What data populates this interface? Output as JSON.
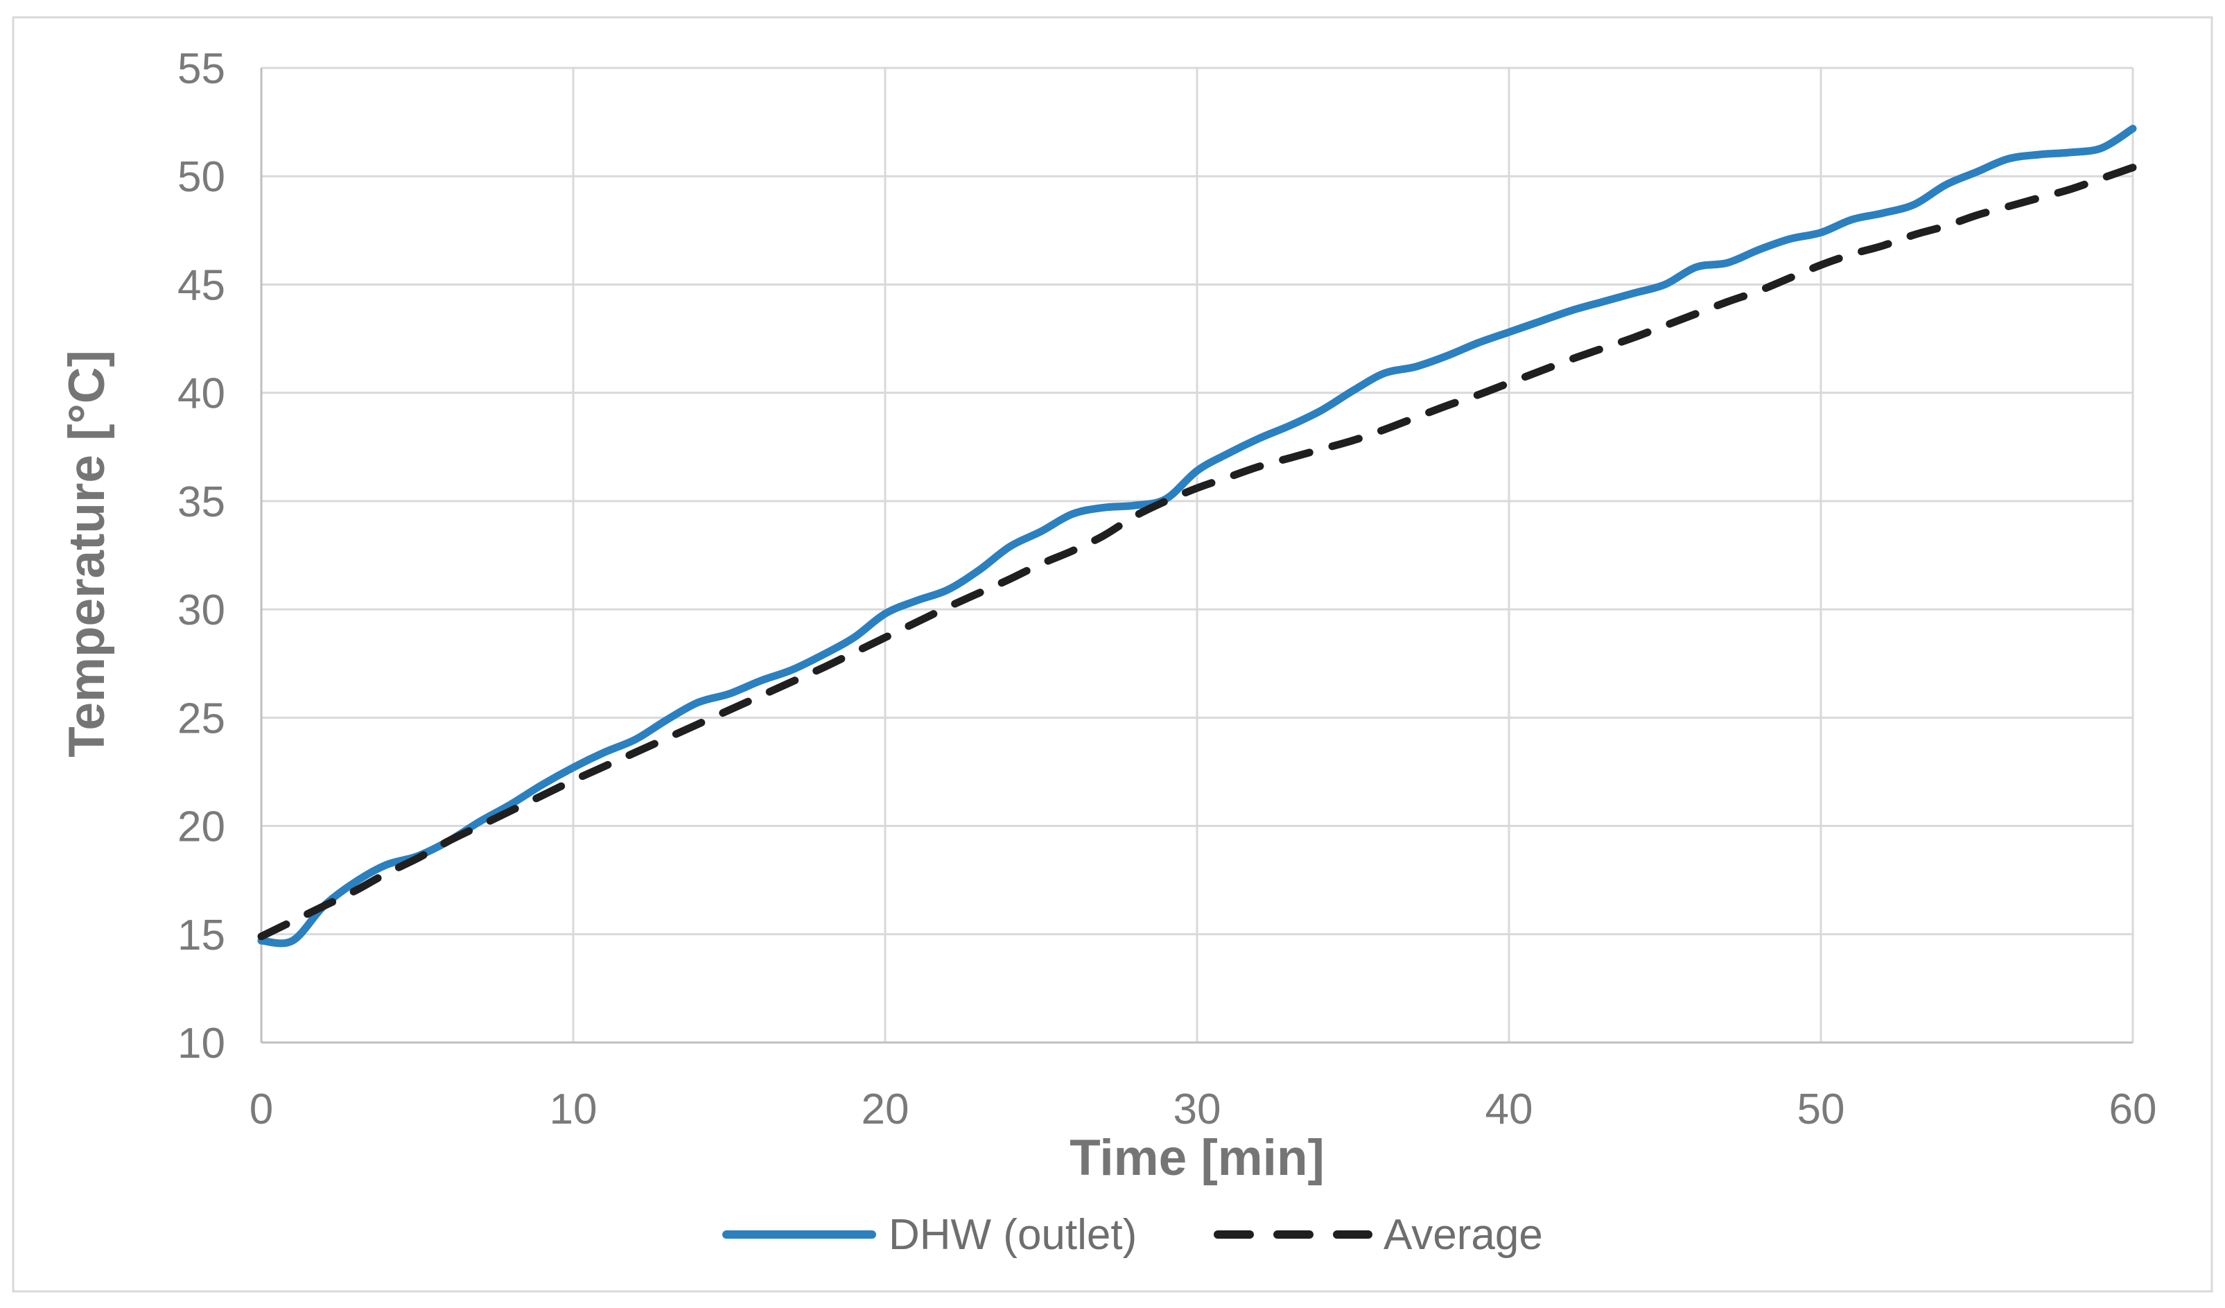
{
  "chart_data": {
    "type": "line",
    "title": "",
    "xlabel": "Time [min]",
    "ylabel": "Temperature [°C]",
    "xlim": [
      0,
      60
    ],
    "ylim": [
      10,
      55
    ],
    "x_ticks": [
      0,
      10,
      20,
      30,
      40,
      50,
      60
    ],
    "y_ticks": [
      10,
      15,
      20,
      25,
      30,
      35,
      40,
      45,
      50,
      55
    ],
    "grid": true,
    "legend_position": "bottom",
    "x": [
      0,
      1,
      2,
      3,
      4,
      5,
      6,
      7,
      8,
      9,
      10,
      11,
      12,
      13,
      14,
      15,
      16,
      17,
      18,
      19,
      20,
      21,
      22,
      23,
      24,
      25,
      26,
      27,
      28,
      29,
      30,
      31,
      32,
      33,
      34,
      35,
      36,
      37,
      38,
      39,
      40,
      41,
      42,
      43,
      44,
      45,
      46,
      47,
      48,
      49,
      50,
      51,
      52,
      53,
      54,
      55,
      56,
      57,
      58,
      59,
      60
    ],
    "series": [
      {
        "name": "DHW (outlet)",
        "color": "#2B80C0",
        "style": "solid",
        "values": [
          14.7,
          14.7,
          16.3,
          17.4,
          18.2,
          18.6,
          19.3,
          20.2,
          21.0,
          21.9,
          22.7,
          23.4,
          24.0,
          24.9,
          25.7,
          26.1,
          26.7,
          27.2,
          27.9,
          28.7,
          29.8,
          30.4,
          30.9,
          31.8,
          32.9,
          33.6,
          34.4,
          34.7,
          34.8,
          35.1,
          36.4,
          37.2,
          37.9,
          38.5,
          39.2,
          40.1,
          40.9,
          41.2,
          41.7,
          42.3,
          42.8,
          43.3,
          43.8,
          44.2,
          44.6,
          45.0,
          45.8,
          46.0,
          46.6,
          47.1,
          47.4,
          48.0,
          48.3,
          48.7,
          49.6,
          50.2,
          50.8,
          51.0,
          51.1,
          51.3,
          52.2
        ]
      },
      {
        "name": "Average",
        "color": "#1F1F1F",
        "style": "dashed",
        "values": [
          14.9,
          15.6,
          16.3,
          17.0,
          17.8,
          18.5,
          19.3,
          20.0,
          20.7,
          21.4,
          22.1,
          22.75,
          23.4,
          24.05,
          24.7,
          25.35,
          26.0,
          26.65,
          27.3,
          28.0,
          28.7,
          29.4,
          30.1,
          30.75,
          31.4,
          32.1,
          32.7,
          33.4,
          34.3,
          35.0,
          35.6,
          36.1,
          36.6,
          37.0,
          37.4,
          37.8,
          38.3,
          38.85,
          39.4,
          39.9,
          40.45,
          41.0,
          41.55,
          42.05,
          42.55,
          43.1,
          43.65,
          44.2,
          44.7,
          45.3,
          45.9,
          46.4,
          46.8,
          47.3,
          47.7,
          48.2,
          48.6,
          49.0,
          49.4,
          49.9,
          50.4
        ]
      }
    ]
  },
  "colors": {
    "background": "#FFFFFF",
    "figure_border": "#D9D9D9",
    "gridline": "#D9D9D9",
    "axis_line": "#BFBFBF",
    "tick_label": "#7A7A7A",
    "axis_title": "#757575",
    "legend_label": "#6E6E6E"
  }
}
